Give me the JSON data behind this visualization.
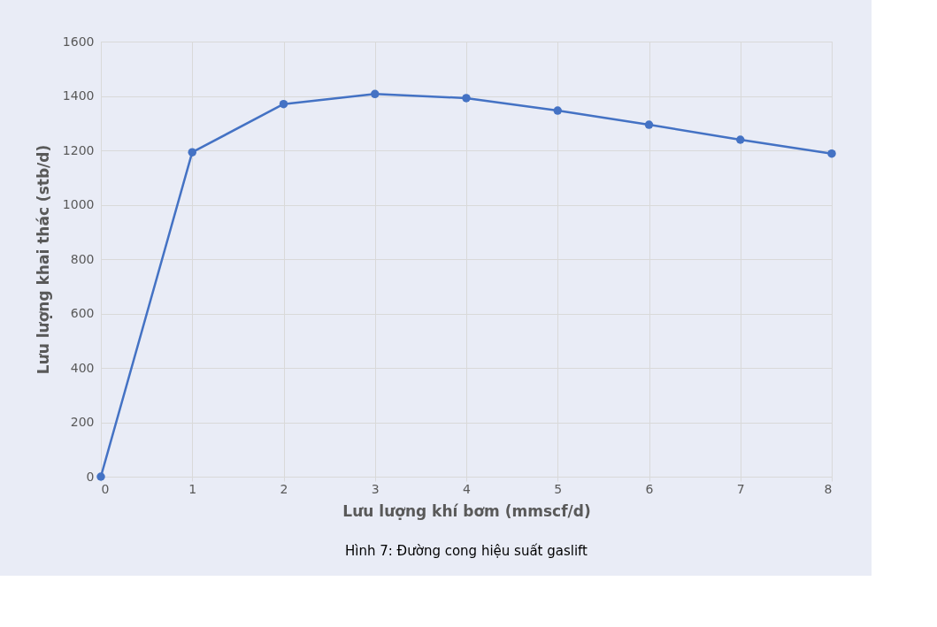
{
  "chart_data": {
    "type": "line",
    "xlabel": "Lưu lượng khí bơm (mmscf/d)",
    "ylabel": "Lưu lượng khai thác (stb/d)",
    "x": [
      0,
      1,
      2,
      3,
      4,
      5,
      6,
      7,
      8
    ],
    "series": [
      {
        "color": "#4472c4",
        "values": [
          0,
          1193,
          1370,
          1407,
          1392,
          1346,
          1294,
          1239,
          1188
        ]
      }
    ],
    "xlim": [
      0,
      8
    ],
    "xticks": [
      0,
      1,
      2,
      3,
      4,
      5,
      6,
      7,
      8
    ],
    "ylim": [
      0,
      1600
    ],
    "yticks": [
      0,
      200,
      400,
      600,
      800,
      1000,
      1200,
      1400,
      1600
    ],
    "grid": true,
    "marker": "circle",
    "line_style": "solid",
    "annotations": [
      "Hình 7: Đường cong hiệu suất gaslift"
    ]
  }
}
